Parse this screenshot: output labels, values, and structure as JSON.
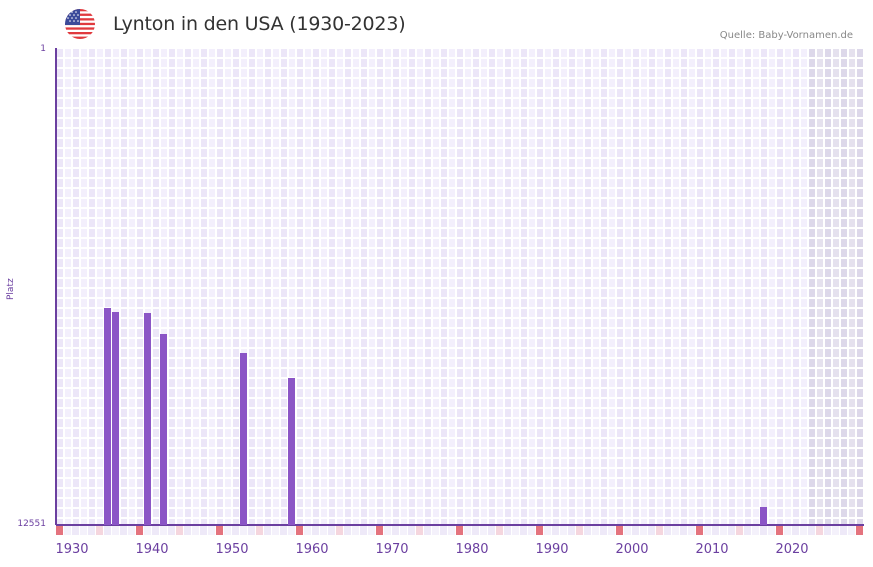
{
  "header": {
    "title": "Lynton in den USA (1930-2023)",
    "source": "Quelle: Baby-Vornamen.de",
    "flag_icon": "us-flag-icon"
  },
  "axes": {
    "ylabel": "Platz",
    "y_top_tick": "1",
    "y_bottom_tick": "12551",
    "x_ticks": [
      "1930",
      "1940",
      "1950",
      "1960",
      "1970",
      "1980",
      "1990",
      "2000",
      "2010",
      "2020"
    ]
  },
  "colors": {
    "bar": "#8b55c6",
    "axis": "#6b3fa0",
    "grid_light": "#f3effc",
    "grid_dark": "#ece6f8",
    "shaded_region": "#e2ddee",
    "decade_marker": "#e4737e",
    "half_decade_marker": "#f5d6de"
  },
  "chart_data": {
    "type": "bar",
    "title": "Lynton in den USA (1930-2023)",
    "xlabel": "",
    "ylabel": "Platz",
    "y_inverted": true,
    "ylim": [
      12551,
      1
    ],
    "xlim": [
      1928,
      2028
    ],
    "grid": true,
    "shaded_region_from": 2022,
    "x": [
      1934,
      1935,
      1939,
      1941,
      1951,
      1957,
      2016
    ],
    "values": [
      6841,
      6946,
      6972,
      7525,
      8025,
      8683,
      12077
    ],
    "series": [
      {
        "name": "Platz",
        "x": [
          1934,
          1935,
          1939,
          1941,
          1951,
          1957,
          2016
        ],
        "values": [
          6841,
          6946,
          6972,
          7525,
          8025,
          8683,
          12077
        ]
      }
    ],
    "x_tick_labels": [
      "1930",
      "1940",
      "1950",
      "1960",
      "1970",
      "1980",
      "1990",
      "2000",
      "2010",
      "2020"
    ],
    "y_tick_labels": [
      "1",
      "12551"
    ],
    "annotations": [
      "Quelle: Baby-Vornamen.de"
    ]
  }
}
